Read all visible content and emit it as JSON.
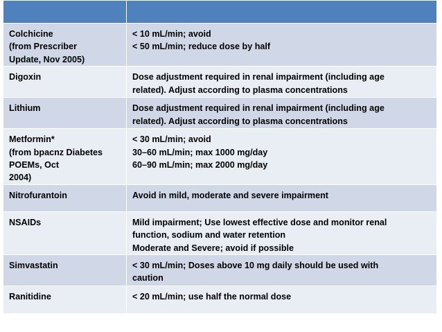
{
  "table": {
    "header": [
      "",
      ""
    ],
    "rows": [
      {
        "drug": [
          "Colchicine",
          "(from Prescriber",
          "Update, Nov 2005)"
        ],
        "note": [
          "< 10 mL/min; avoid",
          "< 50 mL/min; reduce dose by half"
        ]
      },
      {
        "drug": [
          "Digoxin"
        ],
        "note": [
          "Dose adjustment required in renal impairment (including age",
          "related). Adjust according to plasma concentrations"
        ]
      },
      {
        "drug": [
          "Lithium"
        ],
        "note": [
          "Dose adjustment required in renal impairment (including age",
          "related). Adjust according to plasma concentrations"
        ]
      },
      {
        "drug": [
          "Metformin*",
          "(from bpacnz Diabetes",
          "POEMs, Oct",
          "2004)"
        ],
        "note": [
          "< 30 mL/min; avoid",
          "30–60 mL/min; max 1000 mg/day",
          "60–90 mL/min; max 2000 mg/day"
        ]
      },
      {
        "drug": [
          "Nitrofurantoin"
        ],
        "note": [
          "Avoid in mild, moderate and severe impairment"
        ]
      },
      {
        "drug": [
          "NSAIDs"
        ],
        "note": [
          "Mild impairment; Use lowest effective dose and monitor renal",
          "function, sodium and water retention",
          "Moderate and Severe; avoid if possible"
        ]
      },
      {
        "drug": [
          "Simvastatin"
        ],
        "note": [
          "< 30 mL/min; Doses above 10 mg daily should be used with",
          "caution"
        ]
      },
      {
        "drug": [
          "Ranitidine"
        ],
        "note": [
          "< 20 mL/min; use half the normal dose"
        ]
      }
    ]
  },
  "colors": {
    "header": "#4f81bd",
    "row_odd": "#d0d8e8",
    "row_even": "#e9edf4",
    "border": "#ffffff"
  }
}
